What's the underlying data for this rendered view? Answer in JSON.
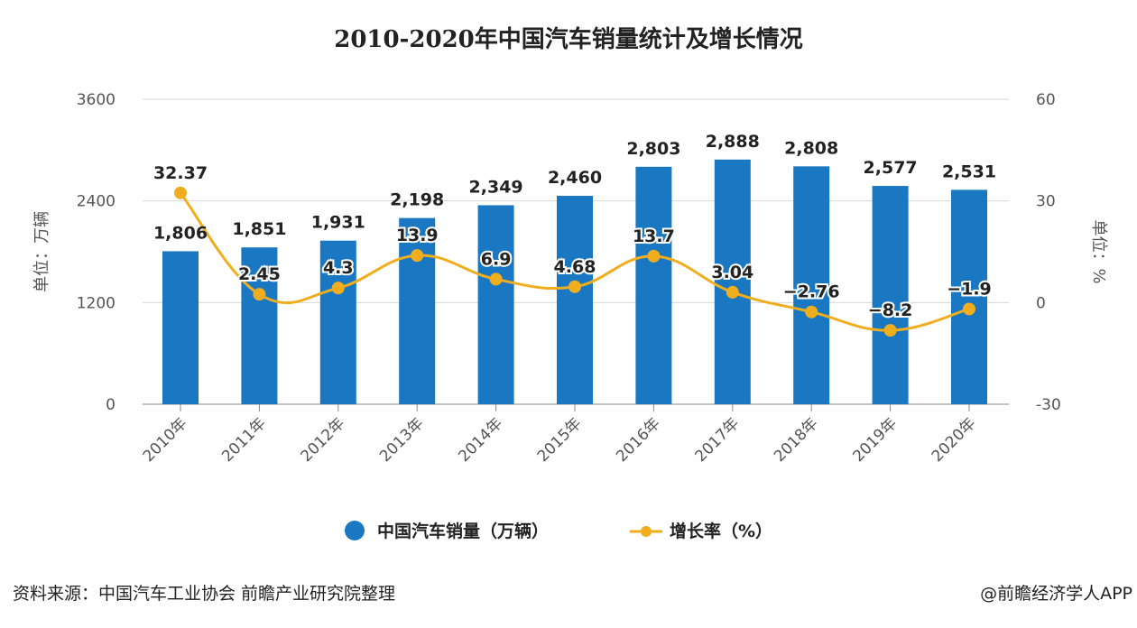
{
  "chart_data": {
    "type": "bar+line",
    "title": "2010-2020年中国汽车销量统计及增长情况",
    "categories": [
      "2010年",
      "2011年",
      "2012年",
      "2013年",
      "2014年",
      "2015年",
      "2016年",
      "2017年",
      "2018年",
      "2019年",
      "2020年"
    ],
    "series": [
      {
        "name": "中国汽车销量（万辆）",
        "type": "bar",
        "axis": "left",
        "color": "#1a78c2",
        "values": [
          1806,
          1851,
          1931,
          2198,
          2349,
          2460,
          2803,
          2888,
          2808,
          2577,
          2531
        ],
        "labels": [
          "1,806",
          "1,851",
          "1,931",
          "2,198",
          "2,349",
          "2,460",
          "2,803",
          "2,888",
          "2,808",
          "2,577",
          "2,531"
        ]
      },
      {
        "name": "增长率（%）",
        "type": "line",
        "axis": "right",
        "color": "#f0ae1e",
        "values": [
          32.37,
          2.45,
          4.3,
          13.9,
          6.9,
          4.68,
          13.7,
          3.04,
          -2.76,
          -8.2,
          -1.9
        ],
        "labels": [
          "32.37",
          "2.45",
          "4.3",
          "13.9",
          "6.9",
          "4.68",
          "13.7",
          "3.04",
          "−2.76",
          "−8.2",
          "−1.9"
        ]
      }
    ],
    "ylabel": "单位：万辆",
    "y2label": "单位：%",
    "ylim": [
      0,
      3600
    ],
    "y2lim": [
      -30,
      60
    ],
    "yticks": [
      "0",
      "1200",
      "2400",
      "3600"
    ],
    "y2ticks": [
      "-30",
      "0",
      "30",
      "60"
    ],
    "grid": true,
    "legend": "bottom"
  },
  "footer": {
    "source": "资料来源：中国汽车工业协会 前瞻产业研究院整理",
    "credit": "@前瞻经济学人APP"
  }
}
